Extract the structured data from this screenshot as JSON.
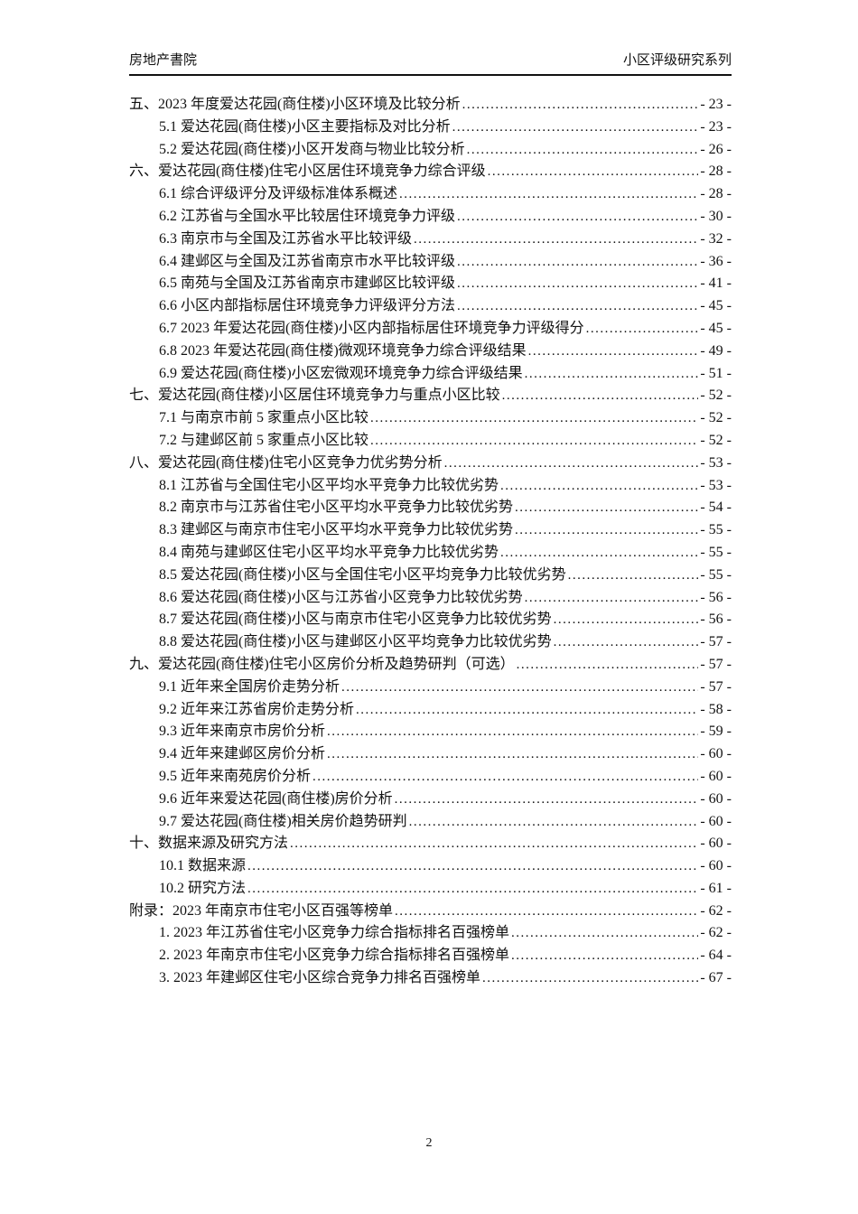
{
  "header": {
    "left": "房地产書院",
    "right": "小区评级研究系列"
  },
  "toc": {
    "entries": [
      {
        "label": "五、2023 年度爱达花园(商住楼)小区环境及比较分析",
        "page": "- 23 -",
        "level": 0
      },
      {
        "label": "5.1 爱达花园(商住楼)小区主要指标及对比分析",
        "page": "- 23 -",
        "level": 1
      },
      {
        "label": "5.2 爱达花园(商住楼)小区开发商与物业比较分析",
        "page": "- 26 -",
        "level": 1
      },
      {
        "label": "六、爱达花园(商住楼)住宅小区居住环境竞争力综合评级",
        "page": "- 28 -",
        "level": 0
      },
      {
        "label": "6.1 综合评级评分及评级标准体系概述",
        "page": "- 28 -",
        "level": 1
      },
      {
        "label": "6.2 江苏省与全国水平比较居住环境竞争力评级",
        "page": "- 30 -",
        "level": 1
      },
      {
        "label": "6.3 南京市与全国及江苏省水平比较评级",
        "page": "- 32 -",
        "level": 1
      },
      {
        "label": "6.4 建邺区与全国及江苏省南京市水平比较评级",
        "page": "- 36 -",
        "level": 1
      },
      {
        "label": "6.5 南苑与全国及江苏省南京市建邺区比较评级",
        "page": "- 41 -",
        "level": 1
      },
      {
        "label": "6.6 小区内部指标居住环境竞争力评级评分方法",
        "page": "- 45 -",
        "level": 1
      },
      {
        "label": "6.7 2023 年爱达花园(商住楼)小区内部指标居住环境竞争力评级得分",
        "page": "- 45 -",
        "level": 1
      },
      {
        "label": "6.8 2023 年爱达花园(商住楼)微观环境竞争力综合评级结果",
        "page": "- 49 -",
        "level": 1
      },
      {
        "label": "6.9 爱达花园(商住楼)小区宏微观环境竞争力综合评级结果",
        "page": "- 51 -",
        "level": 1
      },
      {
        "label": "七、爱达花园(商住楼)小区居住环境竞争力与重点小区比较",
        "page": "- 52 -",
        "level": 0
      },
      {
        "label": "7.1 与南京市前 5 家重点小区比较",
        "page": "- 52 -",
        "level": 1
      },
      {
        "label": "7.2 与建邺区前 5 家重点小区比较",
        "page": "- 52 -",
        "level": 1
      },
      {
        "label": "八、爱达花园(商住楼)住宅小区竞争力优劣势分析",
        "page": "- 53 -",
        "level": 0
      },
      {
        "label": "8.1 江苏省与全国住宅小区平均水平竞争力比较优劣势",
        "page": "- 53 -",
        "level": 1
      },
      {
        "label": "8.2 南京市与江苏省住宅小区平均水平竞争力比较优劣势",
        "page": "- 54 -",
        "level": 1
      },
      {
        "label": "8.3 建邺区与南京市住宅小区平均水平竞争力比较优劣势",
        "page": "- 55 -",
        "level": 1
      },
      {
        "label": "8.4 南苑与建邺区住宅小区平均水平竞争力比较优劣势",
        "page": "- 55 -",
        "level": 1
      },
      {
        "label": "8.5 爱达花园(商住楼)小区与全国住宅小区平均竞争力比较优劣势",
        "page": "- 55 -",
        "level": 1
      },
      {
        "label": "8.6 爱达花园(商住楼)小区与江苏省小区竞争力比较优劣势",
        "page": "- 56 -",
        "level": 1
      },
      {
        "label": "8.7 爱达花园(商住楼)小区与南京市住宅小区竞争力比较优劣势",
        "page": "- 56 -",
        "level": 1
      },
      {
        "label": "8.8 爱达花园(商住楼)小区与建邺区小区平均竞争力比较优劣势",
        "page": "- 57 -",
        "level": 1
      },
      {
        "label": "九、爱达花园(商住楼)住宅小区房价分析及趋势研判（可选）",
        "page": "- 57 -",
        "level": 0
      },
      {
        "label": "9.1 近年来全国房价走势分析",
        "page": "- 57 -",
        "level": 1
      },
      {
        "label": "9.2 近年来江苏省房价走势分析",
        "page": "- 58 -",
        "level": 1
      },
      {
        "label": "9.3 近年来南京市房价分析",
        "page": "- 59 -",
        "level": 1
      },
      {
        "label": "9.4 近年来建邺区房价分析",
        "page": "- 60 -",
        "level": 1
      },
      {
        "label": "9.5 近年来南苑房价分析",
        "page": "- 60 -",
        "level": 1
      },
      {
        "label": "9.6 近年来爱达花园(商住楼)房价分析",
        "page": "- 60 -",
        "level": 1
      },
      {
        "label": "9.7 爱达花园(商住楼)相关房价趋势研判",
        "page": "- 60 -",
        "level": 1
      },
      {
        "label": "十、数据来源及研究方法",
        "page": "- 60 -",
        "level": 0
      },
      {
        "label": "10.1 数据来源",
        "page": "- 60 -",
        "level": 1
      },
      {
        "label": "10.2 研究方法",
        "page": "- 61 -",
        "level": 1
      },
      {
        "label": "附录：2023 年南京市住宅小区百强等榜单",
        "page": "- 62 -",
        "level": 0
      },
      {
        "label": "1. 2023 年江苏省住宅小区竞争力综合指标排名百强榜单",
        "page": "- 62 -",
        "level": 1
      },
      {
        "label": "2. 2023 年南京市住宅小区竞争力综合指标排名百强榜单",
        "page": "- 64 -",
        "level": 1
      },
      {
        "label": "3. 2023 年建邺区住宅小区综合竞争力排名百强榜单",
        "page": "- 67 -",
        "level": 1
      }
    ]
  },
  "footer": {
    "page_number": "2"
  }
}
